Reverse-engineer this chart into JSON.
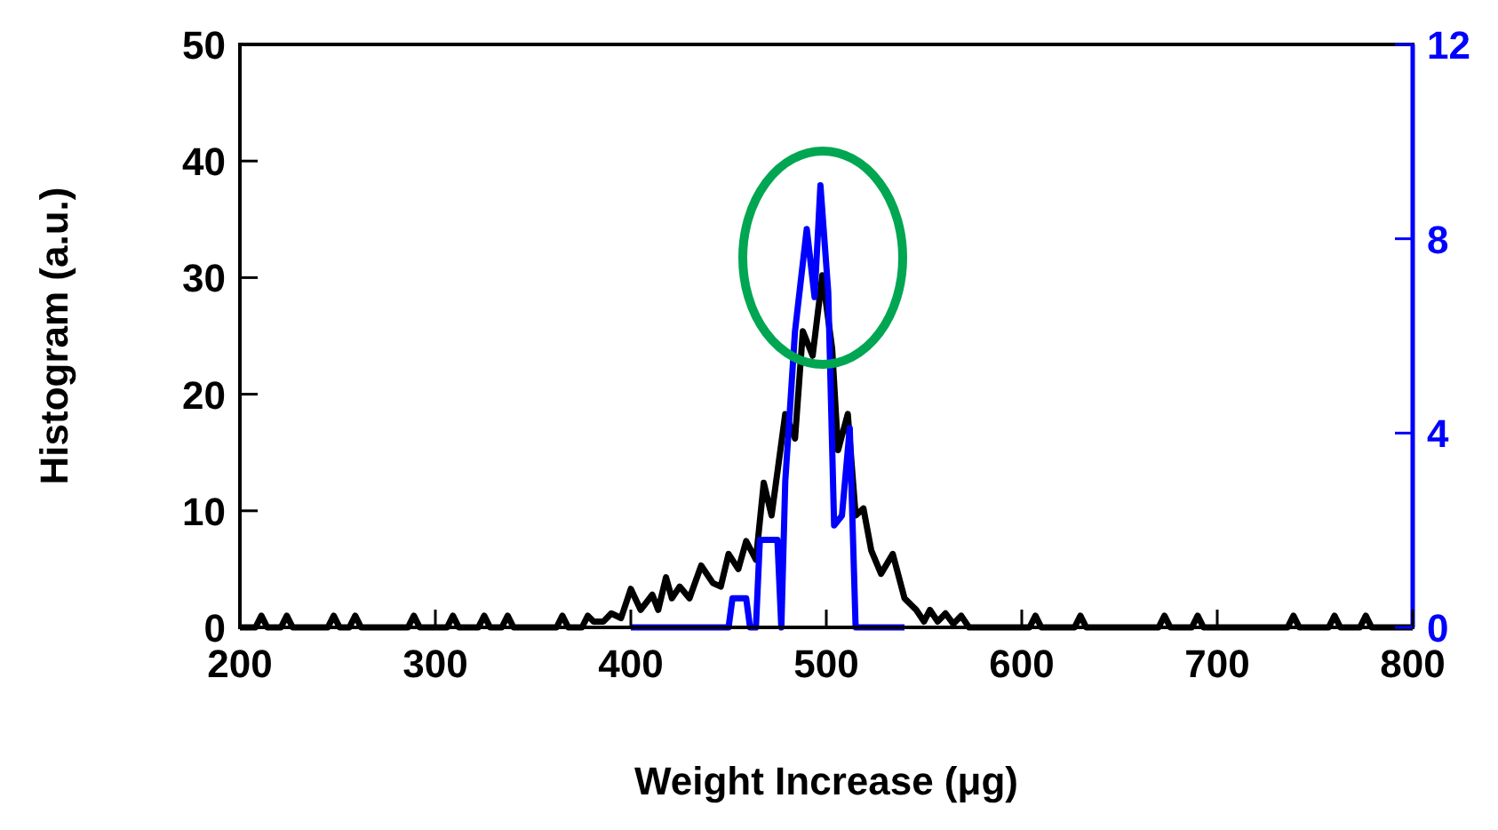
{
  "chart_data": {
    "type": "line",
    "xlabel": "Weight Increase (μg)",
    "ylabel": "Histogram (a.u.)",
    "xlim": [
      200,
      800
    ],
    "xticks": [
      200,
      300,
      400,
      500,
      600,
      700,
      800
    ],
    "ylim": [
      0,
      50
    ],
    "yticks": [
      0,
      10,
      20,
      30,
      40,
      50
    ],
    "y2lim": [
      0,
      12
    ],
    "y2ticks": [
      0,
      4,
      8,
      12
    ],
    "grid": false,
    "marker": "none",
    "line_style": "solid",
    "series": [
      {
        "color": "#000000",
        "x": [
          200,
          208,
          211,
          214,
          221,
          224,
          227,
          245,
          248,
          251,
          256,
          259,
          262,
          286,
          289,
          292,
          306,
          309,
          312,
          322,
          325,
          328,
          334,
          337,
          340,
          362,
          365,
          368,
          375,
          378,
          381,
          386,
          390,
          395,
          400,
          405,
          411,
          414,
          418,
          421,
          425,
          430,
          436,
          442,
          446,
          450,
          455,
          459,
          464,
          468,
          472,
          479,
          484,
          488,
          493,
          498,
          503,
          506,
          511,
          515,
          519,
          523,
          528,
          534,
          540,
          546,
          550,
          553,
          557,
          561,
          565,
          569,
          573,
          604,
          607,
          610,
          627,
          630,
          633,
          670,
          673,
          676,
          687,
          690,
          693,
          736,
          739,
          742,
          757,
          760,
          763,
          773,
          776,
          779,
          800
        ],
        "values": [
          0,
          0,
          1,
          0,
          0,
          1,
          0,
          0,
          1,
          0,
          0,
          1,
          0,
          0,
          1,
          0,
          0,
          1,
          0,
          0,
          1,
          0,
          0,
          1,
          0,
          0,
          1,
          0,
          0,
          1,
          0.5,
          0.5,
          1.2,
          0.8,
          3.3,
          1.5,
          2.8,
          1.5,
          4.3,
          2.5,
          3.5,
          2.5,
          5.3,
          3.8,
          3.5,
          6.3,
          5,
          7.4,
          5.8,
          12.4,
          9.6,
          18.3,
          16.2,
          25.4,
          23.3,
          30.2,
          23.9,
          15.2,
          18.3,
          9.6,
          10.2,
          6.6,
          4.6,
          6.3,
          2.5,
          1.5,
          0.5,
          1.5,
          0.5,
          1.2,
          0.3,
          1,
          0,
          0,
          1,
          0,
          0,
          1,
          0,
          0,
          1,
          0,
          0,
          1,
          0,
          0,
          1,
          0,
          0,
          1,
          0,
          0,
          1,
          0,
          0
        ]
      },
      {
        "color": "#0000ff",
        "axis": "y2",
        "x": [
          400,
          450,
          452,
          459,
          461,
          464,
          466,
          475,
          477,
          479,
          484,
          490,
          494,
          497,
          501,
          504,
          508,
          512,
          515,
          540
        ],
        "values": [
          0,
          0,
          0.6,
          0.6,
          0,
          0,
          1.8,
          1.8,
          0,
          3,
          6.1,
          8.2,
          6.8,
          9.1,
          6.9,
          2.1,
          2.3,
          4.1,
          0,
          0
        ]
      }
    ]
  }
}
